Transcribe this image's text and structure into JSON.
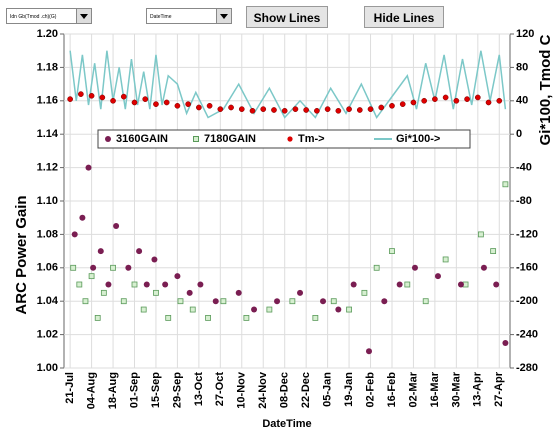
{
  "controls": {
    "dropdown_1": "Idn Gb(Tmod .ch)(G)",
    "dropdown_2": "DateTime",
    "buttons": [
      "Show Lines",
      "Hide Lines"
    ]
  },
  "chart_data": {
    "type": "scatter",
    "x_label": "DateTime",
    "y_label": "ARC Power Gain",
    "y2_label": "Gi*100, Tmod C",
    "xlim": [
      -4,
      287
    ],
    "ylim": [
      1.0,
      1.2
    ],
    "y2lim": [
      -280,
      120
    ],
    "grid": true,
    "legend": "top",
    "xticks": [
      {
        "value": 0,
        "label": "21-Jul"
      },
      {
        "value": 14,
        "label": "04-Aug"
      },
      {
        "value": 28,
        "label": "18-Aug"
      },
      {
        "value": 42,
        "label": "01-Sep"
      },
      {
        "value": 56,
        "label": "15-Sep"
      },
      {
        "value": 70,
        "label": "29-Sep"
      },
      {
        "value": 84,
        "label": "13-Oct"
      },
      {
        "value": 98,
        "label": "27-Oct"
      },
      {
        "value": 112,
        "label": "10-Nov"
      },
      {
        "value": 126,
        "label": "24-Nov"
      },
      {
        "value": 140,
        "label": "08-Dec"
      },
      {
        "value": 154,
        "label": "22-Dec"
      },
      {
        "value": 168,
        "label": "05-Jan"
      },
      {
        "value": 182,
        "label": "19-Jan"
      },
      {
        "value": 196,
        "label": "02-Feb"
      },
      {
        "value": 210,
        "label": "16-Feb"
      },
      {
        "value": 224,
        "label": "02-Mar"
      },
      {
        "value": 238,
        "label": "16-Mar"
      },
      {
        "value": 252,
        "label": "30-Mar"
      },
      {
        "value": 266,
        "label": "13-Apr"
      },
      {
        "value": 280,
        "label": "27-Apr"
      }
    ],
    "yticks": [
      {
        "value": 1.0,
        "label": "1.00"
      },
      {
        "value": 1.02,
        "label": "1.02"
      },
      {
        "value": 1.04,
        "label": "1.04"
      },
      {
        "value": 1.06,
        "label": "1.06"
      },
      {
        "value": 1.08,
        "label": "1.08"
      },
      {
        "value": 1.1,
        "label": "1.10"
      },
      {
        "value": 1.12,
        "label": "1.12"
      },
      {
        "value": 1.14,
        "label": "1.14"
      },
      {
        "value": 1.16,
        "label": "1.16"
      },
      {
        "value": 1.18,
        "label": "1.18"
      },
      {
        "value": 1.2,
        "label": "1.20"
      }
    ],
    "y2ticks": [
      -280,
      -240,
      -200,
      -160,
      -120,
      -80,
      -40,
      0,
      40,
      80,
      120
    ],
    "series": [
      {
        "name": "3160GAIN",
        "color": "#7a1e52",
        "marker": "circle",
        "x": [
          3,
          8,
          12,
          15,
          20,
          25,
          30,
          38,
          45,
          50,
          55,
          62,
          70,
          78,
          85,
          95,
          110,
          120,
          135,
          150,
          165,
          175,
          185,
          195,
          205,
          215,
          225,
          240,
          255,
          270,
          278,
          284
        ],
        "values": [
          1.08,
          1.09,
          1.12,
          1.06,
          1.07,
          1.05,
          1.085,
          1.06,
          1.07,
          1.05,
          1.065,
          1.05,
          1.055,
          1.045,
          1.05,
          1.04,
          1.045,
          1.035,
          1.04,
          1.045,
          1.04,
          1.035,
          1.05,
          1.01,
          1.04,
          1.05,
          1.06,
          1.055,
          1.05,
          1.06,
          1.05,
          1.015
        ]
      },
      {
        "name": "7180GAIN",
        "color": "#5a9a5a",
        "marker": "square",
        "x": [
          2,
          6,
          10,
          14,
          18,
          22,
          28,
          35,
          42,
          48,
          56,
          64,
          72,
          80,
          90,
          100,
          115,
          130,
          145,
          160,
          172,
          182,
          192,
          200,
          210,
          220,
          232,
          245,
          258,
          268,
          276,
          284
        ],
        "values": [
          1.06,
          1.05,
          1.04,
          1.055,
          1.03,
          1.045,
          1.06,
          1.04,
          1.05,
          1.035,
          1.045,
          1.03,
          1.04,
          1.035,
          1.03,
          1.04,
          1.03,
          1.035,
          1.04,
          1.03,
          1.04,
          1.035,
          1.045,
          1.06,
          1.07,
          1.05,
          1.04,
          1.065,
          1.05,
          1.08,
          1.07,
          1.11
        ]
      },
      {
        "name": "Tm->",
        "color": "#dd0000",
        "marker": "dot",
        "axis": "y2",
        "x": [
          0,
          7,
          14,
          21,
          28,
          35,
          42,
          49,
          56,
          63,
          70,
          77,
          84,
          91,
          98,
          105,
          112,
          119,
          126,
          133,
          140,
          147,
          154,
          161,
          168,
          175,
          182,
          189,
          196,
          203,
          210,
          217,
          224,
          231,
          238,
          245,
          252,
          259,
          266,
          273,
          280
        ],
        "values": [
          42,
          48,
          46,
          44,
          40,
          45,
          38,
          42,
          36,
          38,
          34,
          36,
          32,
          34,
          30,
          32,
          30,
          28,
          30,
          29,
          28,
          30,
          29,
          28,
          30,
          28,
          30,
          29,
          30,
          32,
          34,
          36,
          38,
          40,
          42,
          44,
          40,
          42,
          44,
          38,
          40
        ]
      },
      {
        "name": "Gi*100->",
        "color": "#7cc8c8",
        "marker": "line",
        "axis": "y2",
        "x": [
          0,
          4,
          8,
          12,
          16,
          20,
          24,
          28,
          32,
          36,
          40,
          44,
          48,
          52,
          56,
          60,
          64,
          70,
          76,
          82,
          90,
          100,
          110,
          120,
          130,
          140,
          150,
          160,
          170,
          180,
          190,
          200,
          210,
          220,
          226,
          232,
          238,
          244,
          250,
          256,
          262,
          268,
          274,
          280,
          284
        ],
        "values": [
          100,
          40,
          95,
          35,
          85,
          30,
          100,
          40,
          80,
          30,
          90,
          35,
          75,
          30,
          95,
          35,
          70,
          60,
          25,
          50,
          20,
          30,
          60,
          25,
          55,
          20,
          40,
          20,
          55,
          25,
          60,
          20,
          45,
          70,
          30,
          85,
          40,
          95,
          30,
          90,
          35,
          100,
          40,
          95,
          30
        ]
      }
    ]
  }
}
